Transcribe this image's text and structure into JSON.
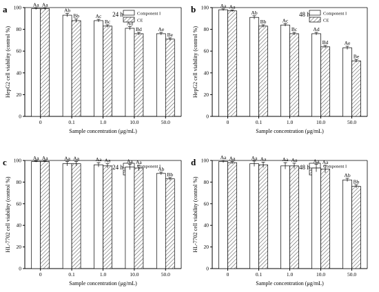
{
  "chart_data": [
    {
      "type": "bar",
      "panel_letter": "a",
      "time_label": "24 h",
      "ylabel": "HepG2 cell viability (control %)",
      "xlabel": "Sample concentration (μg/mL)",
      "categories": [
        "0",
        "0.1",
        "1.0",
        "10.0",
        "50.0"
      ],
      "ylim": [
        0,
        100
      ],
      "yticks": [
        "0",
        "20",
        "40",
        "60",
        "80",
        "100"
      ],
      "legend": "top-right",
      "series": [
        {
          "name": "Component I",
          "values": [
            99,
            93,
            88,
            81,
            76
          ],
          "errors": [
            0.8,
            1.5,
            1.2,
            1.5,
            1.2
          ],
          "labels": [
            "Aa",
            "Ab",
            "Ac",
            "Ad",
            "Ae"
          ]
        },
        {
          "name": "CE",
          "values": [
            99,
            88,
            83,
            76,
            71
          ],
          "errors": [
            0.8,
            1.5,
            1.2,
            1.2,
            1.2
          ],
          "labels": [
            "Aa",
            "Bb",
            "Bc",
            "Bd",
            "Be"
          ]
        }
      ]
    },
    {
      "type": "bar",
      "panel_letter": "b",
      "time_label": "48 h",
      "ylabel": "HepG2 cell viability (control %)",
      "xlabel": "Sample concentration (μg/mL)",
      "categories": [
        "0",
        "0.1",
        "1.0",
        "10.0",
        "50.0"
      ],
      "ylim": [
        0,
        100
      ],
      "yticks": [
        "0",
        "20",
        "40",
        "60",
        "80",
        "100"
      ],
      "legend": "top-right",
      "series": [
        {
          "name": "Component I",
          "values": [
            98,
            91,
            84,
            76,
            63
          ],
          "errors": [
            0.8,
            1.5,
            1.2,
            1.2,
            1.5
          ],
          "labels": [
            "Aa",
            "Ab",
            "Ac",
            "Ad",
            "Ae"
          ]
        },
        {
          "name": "CE",
          "values": [
            97,
            83,
            76,
            64,
            51
          ],
          "errors": [
            0.8,
            1.2,
            1.2,
            1.2,
            1.2
          ],
          "labels": [
            "Aa",
            "Bb",
            "Bc",
            "Bd",
            "Be"
          ]
        }
      ]
    },
    {
      "type": "bar",
      "panel_letter": "c",
      "time_label": "24 h",
      "ylabel": "HL-7702 cell viability (control %)",
      "xlabel": "Sample concentration (μg/mL)",
      "categories": [
        "0",
        "0.1",
        "1.0",
        "10.0",
        "50.0"
      ],
      "ylim": [
        0,
        100
      ],
      "yticks": [
        "0",
        "20",
        "40",
        "60",
        "80",
        "100"
      ],
      "legend": "top-right",
      "series": [
        {
          "name": "Component I",
          "values": [
            99,
            97,
            96,
            94,
            88
          ],
          "errors": [
            0.5,
            2.0,
            2.0,
            2.5,
            1.2
          ],
          "labels": [
            "Aa",
            "Aa",
            "Aa",
            "Aa",
            "Ab"
          ]
        },
        {
          "name": "CE",
          "values": [
            99,
            97,
            95,
            93,
            83
          ],
          "errors": [
            0.5,
            2.0,
            2.0,
            2.5,
            1.2
          ],
          "labels": [
            "Aa",
            "Aa",
            "Aa",
            "Aa",
            "Bb"
          ]
        }
      ]
    },
    {
      "type": "bar",
      "panel_letter": "d",
      "time_label": "48 h",
      "ylabel": "HL-7702 cell viability (control %)",
      "xlabel": "Sample concentration (μg/mL)",
      "categories": [
        "0",
        "0.1",
        "1.0",
        "10.0",
        "50.0"
      ],
      "ylim": [
        0,
        100
      ],
      "yticks": [
        "0",
        "20",
        "40",
        "60",
        "80",
        "100"
      ],
      "legend": "top-right",
      "series": [
        {
          "name": "Component I",
          "values": [
            99,
            97,
            95,
            93,
            82
          ],
          "errors": [
            1.0,
            2.5,
            3.0,
            3.5,
            1.5
          ],
          "labels": [
            "Aa",
            "Aa",
            "Aa",
            "Aa",
            "Ab"
          ]
        },
        {
          "name": "CE",
          "values": [
            98,
            96,
            95,
            92,
            76
          ],
          "errors": [
            1.0,
            2.5,
            2.5,
            3.5,
            1.5
          ],
          "labels": [
            "Aa",
            "Aa",
            "Aa",
            "Aa",
            "Bb"
          ]
        }
      ]
    }
  ]
}
